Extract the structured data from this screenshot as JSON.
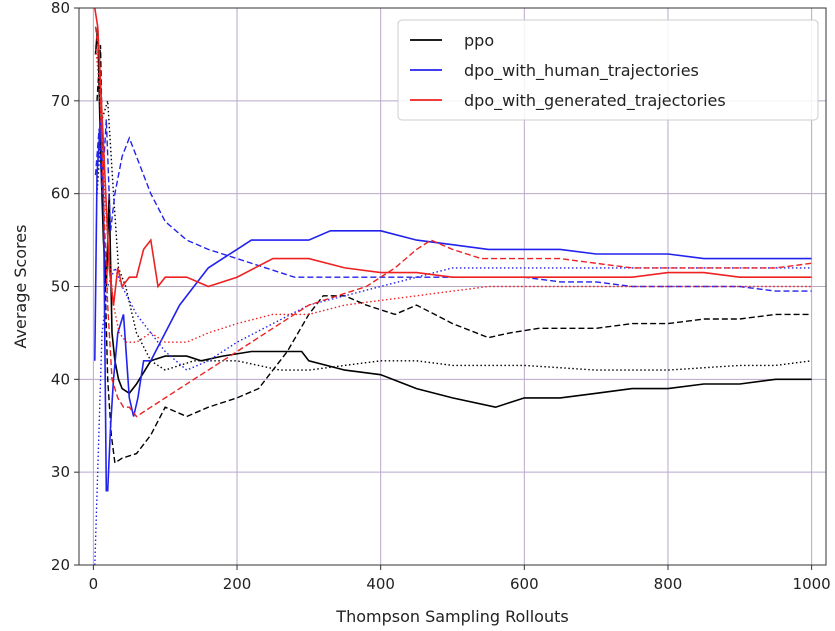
{
  "chart_data": {
    "type": "line",
    "title": "",
    "xlabel": "Thompson Sampling Rollouts",
    "ylabel": "Average Scores",
    "xlim": [
      -20,
      1020
    ],
    "ylim": [
      20,
      80
    ],
    "xticks": [
      0,
      200,
      400,
      600,
      800,
      1000
    ],
    "yticks": [
      20,
      30,
      40,
      50,
      60,
      70,
      80
    ],
    "grid": true,
    "legend_position": "top-right",
    "legend": [
      "ppo",
      "dpo_with_human_trajectories",
      "dpo_with_generated_trajectories"
    ],
    "colors": {
      "ppo": "#000000",
      "dpo_with_human_trajectories": "#2222ee",
      "dpo_with_generated_trajectories": "#ee2222"
    },
    "series": [
      {
        "name": "ppo",
        "color": "#000000",
        "style": "solid",
        "x": [
          3,
          6,
          10,
          14,
          18,
          22,
          26,
          30,
          35,
          40,
          50,
          60,
          80,
          100,
          130,
          150,
          180,
          220,
          260,
          290,
          300,
          350,
          400,
          450,
          500,
          560,
          580,
          600,
          650,
          700,
          750,
          800,
          850,
          900,
          950,
          1000
        ],
        "y": [
          75,
          78,
          65,
          55,
          50,
          60,
          45,
          42,
          40,
          39,
          38.5,
          39.5,
          42,
          42.5,
          42.5,
          42,
          42.5,
          43,
          43,
          43,
          42,
          41,
          40.5,
          39,
          38,
          37,
          37.5,
          38,
          38,
          38.5,
          39,
          39,
          39.5,
          39.5,
          40,
          40
        ]
      },
      {
        "name": "",
        "color": "#000000",
        "style": "dashed",
        "x": [
          5,
          10,
          15,
          20,
          25,
          30,
          40,
          60,
          80,
          100,
          130,
          160,
          200,
          230,
          270,
          300,
          320,
          350,
          380,
          420,
          450,
          500,
          550,
          580,
          620,
          680,
          700,
          750,
          800,
          850,
          900,
          950,
          1000
        ],
        "y": [
          70,
          76,
          55,
          40,
          34,
          31,
          31.5,
          32,
          34,
          37,
          36,
          37,
          38,
          39,
          43,
          47,
          49,
          49,
          48,
          47,
          48,
          46,
          44.5,
          45,
          45.5,
          45.5,
          45.5,
          46,
          46,
          46.5,
          46.5,
          47,
          47
        ]
      },
      {
        "name": "",
        "color": "#000000",
        "style": "dotted",
        "x": [
          5,
          12,
          20,
          28,
          35,
          45,
          60,
          80,
          100,
          140,
          200,
          260,
          300,
          350,
          400,
          450,
          500,
          600,
          700,
          800,
          900,
          950,
          1000
        ],
        "y": [
          60,
          68,
          70,
          60,
          52,
          50,
          45,
          42,
          41,
          42,
          42,
          41,
          41,
          41.5,
          42,
          42,
          41.5,
          41.5,
          41,
          41,
          41.5,
          41.5,
          42
        ]
      },
      {
        "name": "dpo_with_human_trajectories",
        "color": "#2222ee",
        "style": "solid",
        "x": [
          2,
          5,
          10,
          14,
          18,
          20,
          24,
          28,
          34,
          42,
          50,
          56,
          62,
          70,
          80,
          100,
          120,
          140,
          160,
          180,
          200,
          220,
          250,
          280,
          300,
          330,
          360,
          400,
          450,
          500,
          550,
          600,
          650,
          700,
          750,
          800,
          850,
          900,
          950,
          1000
        ],
        "y": [
          42,
          62,
          68,
          60,
          28,
          28,
          35,
          40,
          45,
          47,
          38,
          36,
          38,
          42,
          42,
          45,
          48,
          50,
          52,
          53,
          54,
          55,
          55,
          55,
          55,
          56,
          56,
          56,
          55,
          54.5,
          54,
          54,
          54,
          53.5,
          53.5,
          53.5,
          53,
          53,
          53,
          53
        ]
      },
      {
        "name": "",
        "color": "#2222ee",
        "style": "dashed",
        "x": [
          3,
          8,
          12,
          18,
          24,
          30,
          40,
          50,
          60,
          80,
          100,
          130,
          160,
          200,
          240,
          280,
          300,
          350,
          400,
          450,
          500,
          550,
          600,
          650,
          700,
          750,
          800,
          850,
          900,
          950,
          1000
        ],
        "y": [
          62,
          67,
          60,
          68,
          56,
          60,
          64,
          66,
          64,
          60,
          57,
          55,
          54,
          53,
          52,
          51,
          51,
          51,
          51,
          51,
          51,
          51,
          51,
          50.5,
          50.5,
          50,
          50,
          50,
          50,
          49.5,
          49.5
        ]
      },
      {
        "name": "",
        "color": "#2222ee",
        "style": "dotted",
        "x": [
          2,
          6,
          12,
          20,
          30,
          40,
          60,
          80,
          100,
          130,
          160,
          200,
          250,
          300,
          350,
          400,
          450,
          500,
          550,
          600,
          700,
          800,
          900,
          1000
        ],
        "y": [
          20,
          30,
          45,
          50,
          52,
          50,
          47,
          45,
          43,
          41,
          42,
          44,
          46,
          48,
          49,
          50,
          51,
          52,
          52,
          52,
          52,
          52,
          52,
          52
        ]
      },
      {
        "name": "dpo_with_generated_trajectories",
        "color": "#ee2222",
        "style": "solid",
        "x": [
          2,
          6,
          10,
          16,
          22,
          28,
          34,
          40,
          50,
          60,
          70,
          80,
          90,
          100,
          130,
          160,
          200,
          250,
          300,
          350,
          400,
          450,
          500,
          550,
          600,
          650,
          700,
          750,
          800,
          850,
          900,
          950,
          1000
        ],
        "y": [
          80,
          78,
          72,
          62,
          52,
          48,
          52,
          50,
          51,
          51,
          54,
          55,
          50,
          51,
          51,
          50,
          51,
          53,
          53,
          52,
          51.5,
          51.5,
          51,
          51,
          51,
          51,
          51,
          51,
          51.5,
          51.5,
          51,
          51,
          51
        ]
      },
      {
        "name": "",
        "color": "#ee2222",
        "style": "dashed",
        "x": [
          3,
          8,
          14,
          20,
          26,
          34,
          42,
          50,
          60,
          80,
          100,
          140,
          180,
          220,
          260,
          300,
          340,
          380,
          420,
          450,
          470,
          500,
          540,
          600,
          650,
          700,
          750,
          800,
          850,
          900,
          950,
          1000
        ],
        "y": [
          78,
          75,
          60,
          48,
          40,
          38,
          37,
          37,
          36,
          37,
          38,
          40,
          42,
          44,
          46,
          48,
          49,
          50,
          52,
          54,
          55,
          54,
          53,
          53,
          53,
          52.5,
          52,
          52,
          52,
          52,
          52,
          52.5
        ]
      },
      {
        "name": "",
        "color": "#ee2222",
        "style": "dotted",
        "x": [
          3,
          8,
          14,
          20,
          28,
          36,
          46,
          60,
          80,
          100,
          130,
          160,
          200,
          250,
          300,
          350,
          400,
          450,
          500,
          550,
          600,
          650,
          700,
          800,
          900,
          1000
        ],
        "y": [
          76,
          72,
          62,
          55,
          48,
          45,
          44,
          44,
          45,
          44,
          44,
          45,
          46,
          47,
          47,
          48,
          48.5,
          49,
          49.5,
          50,
          50,
          50,
          50,
          50,
          50,
          50
        ]
      }
    ]
  }
}
